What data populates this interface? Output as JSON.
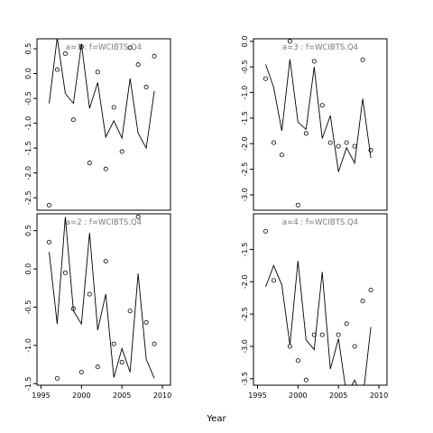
{
  "chart_data": {
    "type": "line",
    "xlabel": "Year",
    "x_ticks": [
      1995,
      2000,
      2005,
      2010
    ],
    "xlim": [
      1994.5,
      2011
    ],
    "panels": [
      {
        "label": "a=1 : f=WCIBTS.Q4",
        "ylim": [
          -2.75,
          0.7
        ],
        "y_ticks": [
          -2.5,
          -2.0,
          -1.5,
          -1.0,
          -0.5,
          0.0,
          0.5
        ],
        "y_tick_labels": [
          "-2.5",
          "-2.0",
          "-1.5",
          "-1.0",
          "-0.5",
          "0.0",
          "0.5"
        ],
        "line": {
          "x": [
            1996,
            1997,
            1998,
            1999,
            2000,
            2001,
            2002,
            2003,
            2004,
            2005,
            2006,
            2007,
            2008,
            2009
          ],
          "y": [
            -0.6,
            0.72,
            -0.4,
            -0.6,
            0.6,
            -0.7,
            -0.18,
            -1.28,
            -0.95,
            -1.3,
            -0.1,
            -1.2,
            -1.5,
            -0.35
          ]
        },
        "points": {
          "x": [
            1996,
            1997,
            1998,
            1999,
            2000,
            2001,
            2002,
            2003,
            2004,
            2005,
            2006,
            2007,
            2008,
            2009
          ],
          "y": [
            -2.65,
            0.08,
            0.4,
            -0.93,
            0.54,
            -1.8,
            0.03,
            -1.92,
            -0.68,
            -1.57,
            0.52,
            0.18,
            -0.27,
            0.35
          ]
        }
      },
      {
        "label": "a=2 : f=WCIBTS.Q4",
        "ylim": [
          -1.52,
          0.72
        ],
        "y_ticks": [
          -1.5,
          -1.0,
          -0.5,
          0.0,
          0.5
        ],
        "y_tick_labels": [
          "-1.5",
          "-1.0",
          "-0.5",
          "0.0",
          "0.5"
        ],
        "line": {
          "x": [
            1996,
            1997,
            1998,
            1999,
            2000,
            2001,
            2002,
            2003,
            2004,
            2005,
            2006,
            2007,
            2008,
            2009
          ],
          "y": [
            0.22,
            -0.72,
            0.68,
            -0.55,
            -0.72,
            0.47,
            -0.8,
            -0.33,
            -1.42,
            -1.04,
            -1.35,
            -0.06,
            -1.18,
            -1.43
          ]
        },
        "points": {
          "x": [
            1996,
            1997,
            1998,
            1999,
            2000,
            2001,
            2002,
            2003,
            2004,
            2005,
            2006,
            2007,
            2008,
            2009
          ],
          "y": [
            0.35,
            -1.43,
            -0.05,
            -0.52,
            -1.35,
            -0.33,
            -1.28,
            0.1,
            -0.98,
            -1.22,
            -0.55,
            0.68,
            -0.7,
            -0.98
          ]
        }
      },
      {
        "label": "a=3 : f=WCIBTS.Q4",
        "ylim": [
          -3.3,
          0.05
        ],
        "y_ticks": [
          -3.0,
          -2.5,
          -2.0,
          -1.5,
          -1.0,
          -0.5,
          0.0
        ],
        "y_tick_labels": [
          "-3.0",
          "-2.5",
          "-2.0",
          "-1.5",
          "-1.0",
          "-0.5",
          "0.0"
        ],
        "line": {
          "x": [
            1996,
            1997,
            1998,
            1999,
            2000,
            2001,
            2002,
            2003,
            2004,
            2005,
            2006,
            2007,
            2008,
            2009
          ],
          "y": [
            -0.45,
            -0.9,
            -1.75,
            -0.35,
            -1.58,
            -1.72,
            -0.5,
            -1.9,
            -1.45,
            -2.55,
            -2.08,
            -2.38,
            -1.12,
            -2.28
          ]
        },
        "points": {
          "x": [
            1996,
            1997,
            1998,
            1999,
            2000,
            2001,
            2002,
            2003,
            2004,
            2005,
            2006,
            2007,
            2008,
            2009
          ],
          "y": [
            -0.73,
            -1.98,
            -2.22,
            0.0,
            -3.2,
            -1.8,
            -0.39,
            -1.25,
            -1.98,
            -2.05,
            -1.98,
            -2.05,
            -0.36,
            -2.13
          ]
        }
      },
      {
        "label": "a=4 : f=WCIBTS.Q4",
        "ylim": [
          -3.6,
          -0.95
        ],
        "y_ticks": [
          -3.5,
          -3.0,
          -2.5,
          -2.0,
          -1.5
        ],
        "y_tick_labels": [
          "-3.5",
          "-3.0",
          "-2.5",
          "-2.0",
          "-1.5"
        ],
        "line": {
          "x": [
            1996,
            1997,
            1998,
            1999,
            2000,
            2001,
            2002,
            2003,
            2004,
            2005,
            2006,
            2007,
            2008,
            2009
          ],
          "y": [
            -2.08,
            -1.75,
            -2.05,
            -2.98,
            -1.68,
            -2.9,
            -3.05,
            -1.85,
            -3.35,
            -2.88,
            -3.75,
            -3.52,
            -3.82,
            -2.7
          ]
        },
        "points": {
          "x": [
            1996,
            1997,
            1998,
            1999,
            2000,
            2001,
            2002,
            2003,
            2004,
            2005,
            2006,
            2007,
            2008,
            2009
          ],
          "y": [
            -1.22,
            -1.98,
            -3.75,
            -3.0,
            -3.22,
            -3.52,
            -2.82,
            -2.82,
            -3.72,
            -2.82,
            -2.65,
            -3.0,
            -2.3,
            -2.13
          ]
        }
      }
    ]
  }
}
